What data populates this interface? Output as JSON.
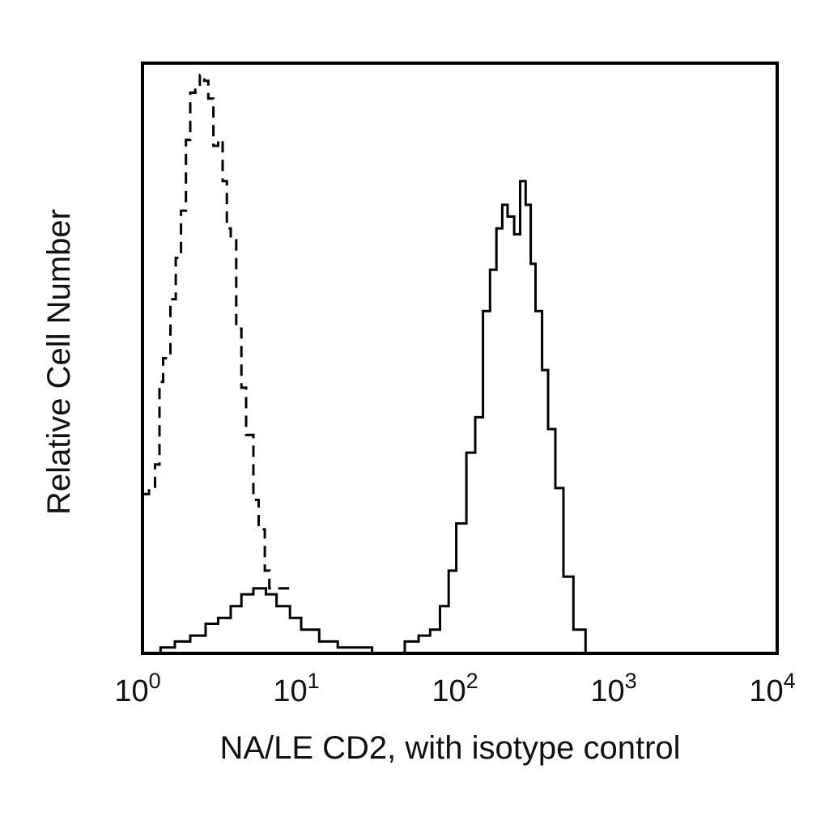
{
  "chart_data": {
    "type": "line",
    "title": "",
    "xlabel": "NA/LE CD2, with isotype control",
    "ylabel": "Relative Cell Number",
    "x_scale": "log",
    "xlim": [
      1,
      10000
    ],
    "ylim": [
      0,
      100
    ],
    "x_ticks": [
      {
        "value": 1,
        "base": "10",
        "exp": "0"
      },
      {
        "value": 10,
        "base": "10",
        "exp": "1"
      },
      {
        "value": 100,
        "base": "10",
        "exp": "2"
      },
      {
        "value": 1000,
        "base": "10",
        "exp": "3"
      },
      {
        "value": 10000,
        "base": "10",
        "exp": "4"
      }
    ],
    "grid": false,
    "legend": "none",
    "series": [
      {
        "style": "dashed",
        "color": "#000000",
        "x": [
          1.0,
          1.1,
          1.2,
          1.28,
          1.35,
          1.42,
          1.5,
          1.62,
          1.75,
          1.88,
          2.0,
          2.15,
          2.3,
          2.45,
          2.6,
          2.8,
          3.0,
          3.2,
          3.4,
          3.6,
          3.9,
          4.2,
          4.5,
          5.0,
          5.4,
          5.9,
          6.3,
          6.8,
          7.3,
          7.8,
          8.4
        ],
        "y": [
          27,
          28,
          32,
          46,
          50,
          50,
          60,
          67,
          75,
          87,
          95,
          96,
          98,
          97,
          94,
          86,
          87,
          80,
          72,
          70,
          55,
          45,
          37,
          26,
          21,
          14,
          11,
          11,
          11,
          11,
          11
        ]
      },
      {
        "style": "solid",
        "color": "#000000",
        "x": [
          1.0,
          1.3,
          1.6,
          2.0,
          2.5,
          3.0,
          3.6,
          4.2,
          5.0,
          6.0,
          7.0,
          8.5,
          10,
          13,
          17,
          22,
          28,
          35,
          45,
          55,
          65,
          75,
          85,
          95,
          110,
          125,
          140,
          155,
          170,
          185,
          200,
          220,
          240,
          260,
          280,
          300,
          330,
          360,
          400,
          450,
          520,
          620,
          700,
          10000
        ],
        "y": [
          0,
          1,
          2,
          3,
          5,
          6,
          8,
          10,
          11,
          10,
          8,
          6,
          4,
          2,
          1,
          1,
          0,
          0,
          2,
          3,
          4,
          8,
          14,
          22,
          34,
          40,
          58,
          65,
          72,
          76,
          74,
          71,
          80,
          76,
          66,
          58,
          48,
          38,
          28,
          13,
          4,
          0,
          0,
          0
        ]
      }
    ]
  }
}
